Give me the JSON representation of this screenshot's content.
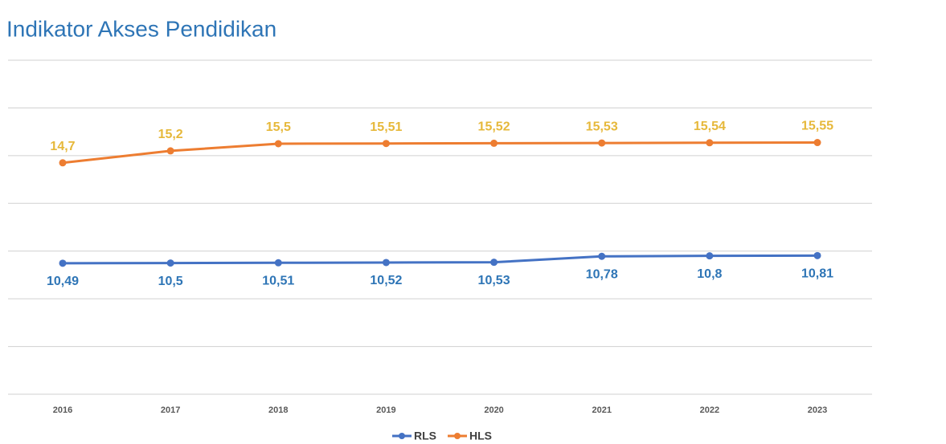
{
  "chart_data": {
    "type": "line",
    "title": "Indikator Akses Pendidikan",
    "categories": [
      "2016",
      "2017",
      "2018",
      "2019",
      "2020",
      "2021",
      "2022",
      "2023"
    ],
    "series": [
      {
        "name": "RLS",
        "color": "#4472c4",
        "label_color": "#2e75b6",
        "values": [
          10.49,
          10.5,
          10.51,
          10.52,
          10.53,
          10.78,
          10.8,
          10.81
        ],
        "value_labels": [
          "10,49",
          "10,5",
          "10,51",
          "10,52",
          "10,53",
          "10,78",
          "10,8",
          "10,81"
        ]
      },
      {
        "name": "HLS",
        "color": "#ed7d31",
        "label_color": "#e6b83a",
        "values": [
          14.7,
          15.2,
          15.5,
          15.51,
          15.52,
          15.53,
          15.54,
          15.55
        ],
        "value_labels": [
          "14,7",
          "15,2",
          "15,5",
          "15,51",
          "15,52",
          "15,53",
          "15,54",
          "15,55"
        ]
      }
    ],
    "ylim": [
      5,
      19
    ],
    "yticks": [
      5,
      7,
      9,
      11,
      13,
      15,
      17,
      19
    ],
    "grid": true,
    "legend": "bottom"
  }
}
